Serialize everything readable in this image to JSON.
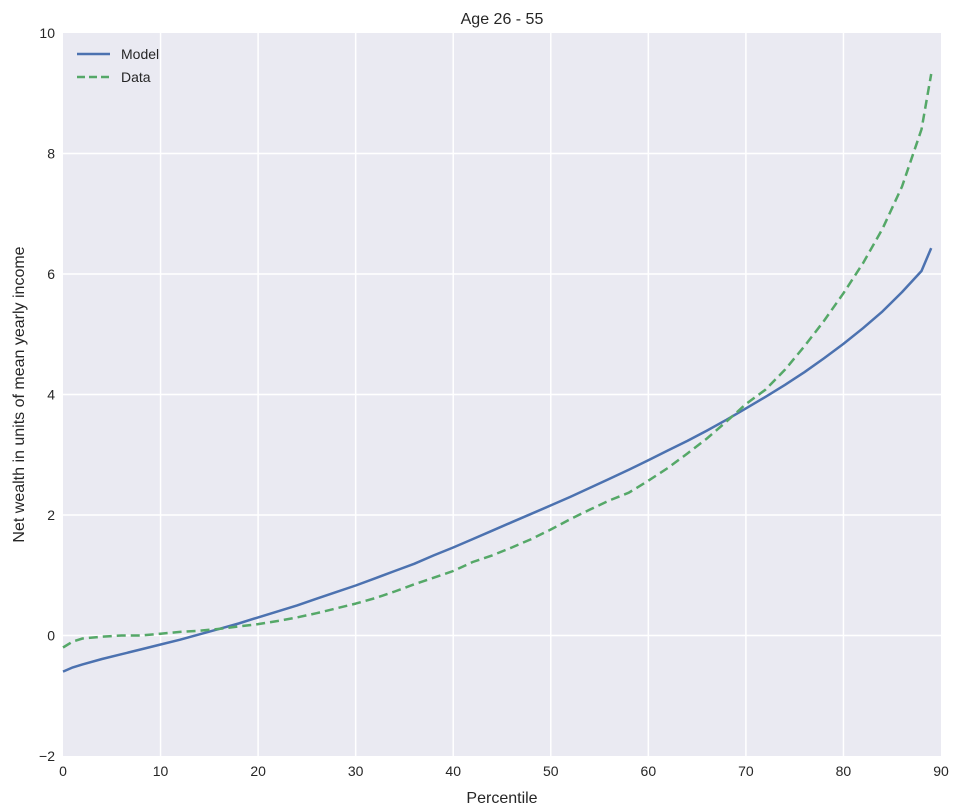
{
  "chart_data": {
    "type": "line",
    "title": "Age 26 - 55",
    "xlabel": "Percentile",
    "ylabel": "Net wealth in units of mean yearly income",
    "xlim": [
      0,
      90
    ],
    "ylim": [
      -2,
      10
    ],
    "xticks": [
      0,
      10,
      20,
      30,
      40,
      50,
      60,
      70,
      80,
      90
    ],
    "yticks": [
      -2,
      0,
      2,
      4,
      6,
      8,
      10
    ],
    "xtick_labels": [
      "0",
      "10",
      "20",
      "30",
      "40",
      "50",
      "60",
      "70",
      "80",
      "90"
    ],
    "ytick_labels": [
      "−2",
      "0",
      "2",
      "4",
      "6",
      "8",
      "10"
    ],
    "grid": true,
    "legend_position": "top-left",
    "colors": {
      "background": "#eaeaf2",
      "grid": "#ffffff",
      "model": "#4c72b0",
      "data": "#55a868"
    },
    "series": [
      {
        "name": "Model",
        "style": "solid",
        "x": [
          0,
          1,
          2,
          4,
          6,
          8,
          10,
          12,
          14,
          16,
          18,
          20,
          22,
          24,
          26,
          28,
          30,
          32,
          34,
          36,
          38,
          40,
          42,
          44,
          46,
          48,
          50,
          52,
          54,
          56,
          58,
          60,
          62,
          64,
          66,
          68,
          70,
          72,
          74,
          76,
          78,
          80,
          82,
          84,
          86,
          88,
          89
        ],
        "y": [
          -0.6,
          -0.53,
          -0.48,
          -0.39,
          -0.31,
          -0.23,
          -0.15,
          -0.07,
          0.02,
          0.11,
          0.2,
          0.3,
          0.4,
          0.5,
          0.61,
          0.72,
          0.83,
          0.95,
          1.07,
          1.19,
          1.33,
          1.46,
          1.6,
          1.74,
          1.88,
          2.02,
          2.16,
          2.3,
          2.45,
          2.6,
          2.75,
          2.91,
          3.07,
          3.23,
          3.4,
          3.58,
          3.77,
          3.96,
          4.16,
          4.37,
          4.6,
          4.84,
          5.1,
          5.38,
          5.7,
          6.05,
          6.43
        ]
      },
      {
        "name": "Data",
        "style": "dashed",
        "x": [
          0,
          1,
          2,
          4,
          6,
          8,
          10,
          12,
          14,
          16,
          18,
          20,
          22,
          24,
          26,
          28,
          30,
          32,
          34,
          36,
          38,
          40,
          42,
          44,
          46,
          48,
          50,
          52,
          54,
          56,
          58,
          60,
          62,
          64,
          66,
          68,
          70,
          72,
          74,
          76,
          78,
          80,
          82,
          84,
          86,
          88,
          89
        ],
        "y": [
          -0.2,
          -0.1,
          -0.05,
          -0.02,
          0.0,
          0.0,
          0.03,
          0.06,
          0.08,
          0.11,
          0.15,
          0.19,
          0.24,
          0.3,
          0.37,
          0.45,
          0.53,
          0.62,
          0.73,
          0.85,
          0.96,
          1.07,
          1.22,
          1.33,
          1.46,
          1.6,
          1.76,
          1.93,
          2.09,
          2.24,
          2.37,
          2.57,
          2.78,
          3.02,
          3.27,
          3.55,
          3.84,
          4.08,
          4.41,
          4.8,
          5.22,
          5.68,
          6.18,
          6.75,
          7.45,
          8.4,
          9.32
        ]
      }
    ]
  }
}
